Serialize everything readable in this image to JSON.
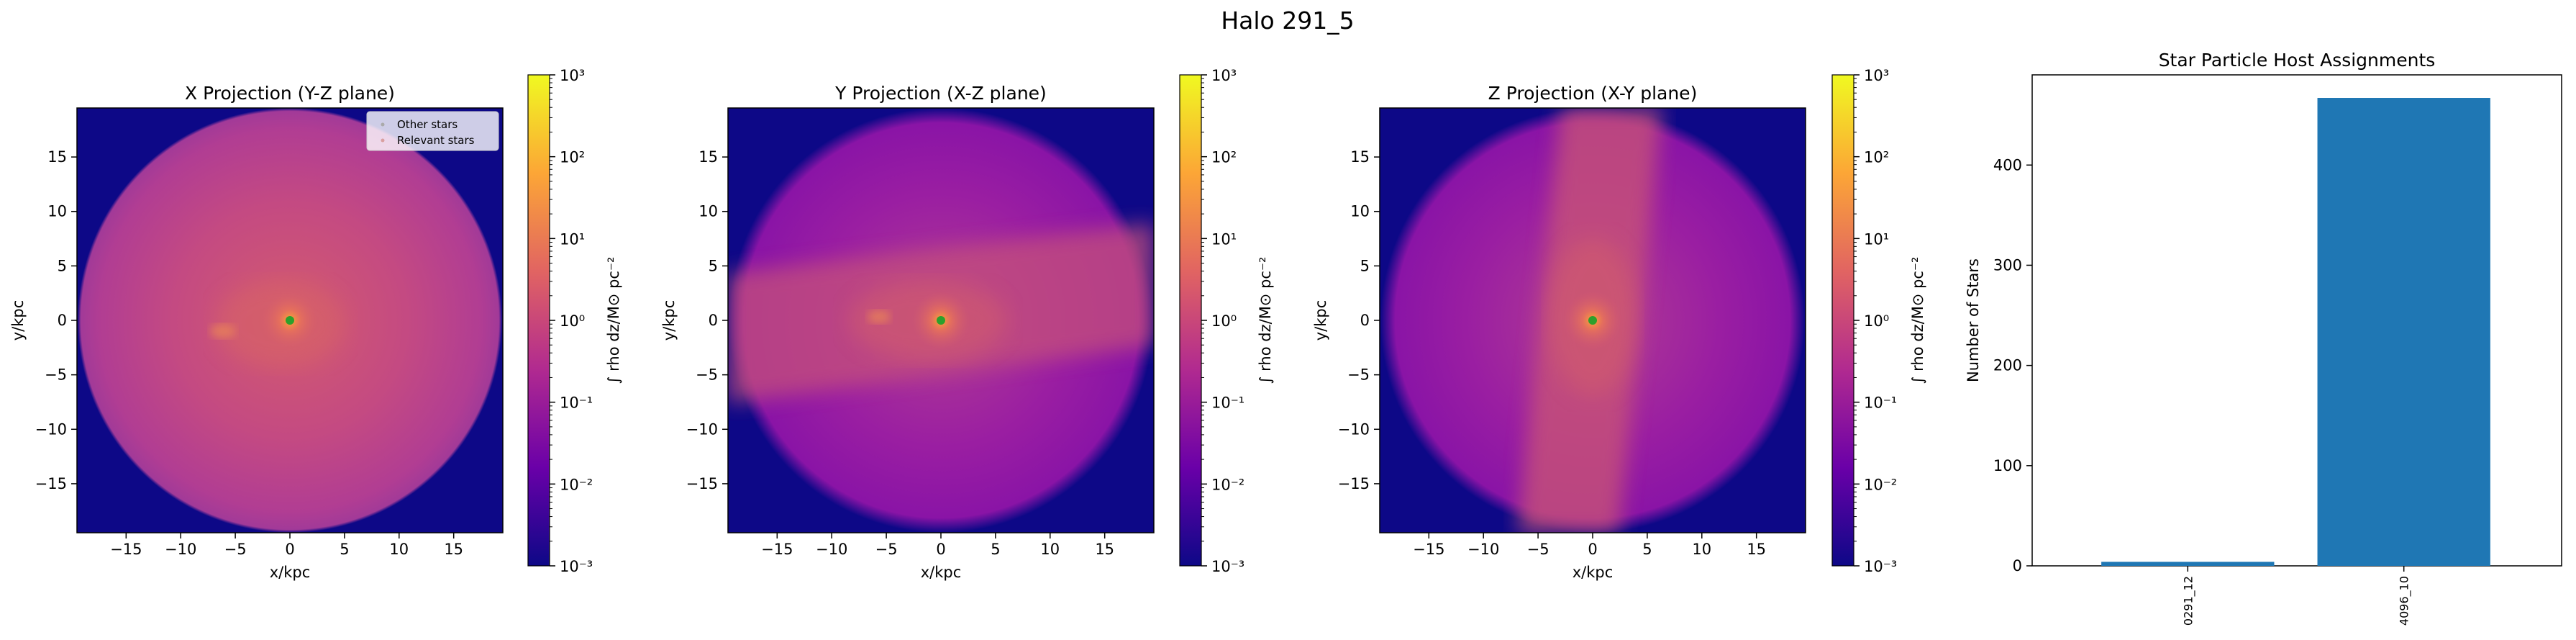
{
  "figure": {
    "title": "Halo 291_5"
  },
  "colors": {
    "bar": "#1f77b4",
    "halo_center": "#2ca02c",
    "background_outside": "#0d0887",
    "colormap": [
      "#0d0887",
      "#6a00a8",
      "#b12a90",
      "#e16462",
      "#fca636",
      "#f0f921"
    ]
  },
  "projections": [
    {
      "title": "X Projection (Y-Z plane)",
      "xlabel": "x/kpc",
      "ylabel": "y/kpc",
      "xticks": [
        "−15",
        "−10",
        "−5",
        "0",
        "5",
        "10",
        "15"
      ],
      "yticks": [
        "15",
        "10",
        "5",
        "0",
        "−5",
        "−10",
        "−15"
      ],
      "legend": [
        "Other stars",
        "Relevant stars"
      ],
      "colorbar_label": "∫ rho dz/M⊙ pc⁻²",
      "colorbar_ticks": [
        "10³",
        "10²",
        "10¹",
        "10⁰",
        "10⁻¹",
        "10⁻²",
        "10⁻³"
      ]
    },
    {
      "title": "Y Projection (X-Z plane)",
      "xlabel": "x/kpc",
      "ylabel": "y/kpc",
      "xticks": [
        "−15",
        "−10",
        "−5",
        "0",
        "5",
        "10",
        "15"
      ],
      "yticks": [
        "15",
        "10",
        "5",
        "0",
        "−5",
        "−10",
        "−15"
      ],
      "colorbar_label": "∫ rho dz/M⊙ pc⁻²",
      "colorbar_ticks": [
        "10³",
        "10²",
        "10¹",
        "10⁰",
        "10⁻¹",
        "10⁻²",
        "10⁻³"
      ]
    },
    {
      "title": "Z Projection (X-Y plane)",
      "xlabel": "x/kpc",
      "ylabel": "y/kpc",
      "xticks": [
        "−15",
        "−10",
        "−5",
        "0",
        "5",
        "10",
        "15"
      ],
      "yticks": [
        "15",
        "10",
        "5",
        "0",
        "−5",
        "−10",
        "−15"
      ],
      "colorbar_label": "∫ rho dz/M⊙ pc⁻²",
      "colorbar_ticks": [
        "10³",
        "10²",
        "10¹",
        "10⁰",
        "10⁻¹",
        "10⁻²",
        "10⁻³"
      ]
    }
  ],
  "chart_data": [
    {
      "type": "heatmap",
      "title": "X Projection (Y-Z plane)",
      "xlabel": "x/kpc",
      "ylabel": "y/kpc",
      "xlim": [
        -19.5,
        19.5
      ],
      "ylim": [
        -19.5,
        19.5
      ],
      "colorbar": {
        "label": "∫ rho dz/M⊙ pc⁻²",
        "scale": "log",
        "range": [
          0.001,
          1000
        ]
      },
      "legend": [
        "Other stars",
        "Relevant stars"
      ],
      "legend_position": "top-right",
      "halo_center": {
        "x": 0,
        "y": 0
      }
    },
    {
      "type": "heatmap",
      "title": "Y Projection (X-Z plane)",
      "xlabel": "x/kpc",
      "ylabel": "y/kpc",
      "xlim": [
        -19.5,
        19.5
      ],
      "ylim": [
        -19.5,
        19.5
      ],
      "colorbar": {
        "label": "∫ rho dz/M⊙ pc⁻²",
        "scale": "log",
        "range": [
          0.001,
          1000
        ]
      },
      "halo_center": {
        "x": 0,
        "y": 0
      }
    },
    {
      "type": "heatmap",
      "title": "Z Projection (X-Y plane)",
      "xlabel": "x/kpc",
      "ylabel": "y/kpc",
      "xlim": [
        -19.5,
        19.5
      ],
      "ylim": [
        -19.5,
        19.5
      ],
      "colorbar": {
        "label": "∫ rho dz/M⊙ pc⁻²",
        "scale": "log",
        "range": [
          0.001,
          1000
        ]
      },
      "halo_center": {
        "x": 0,
        "y": 0
      }
    },
    {
      "type": "bar",
      "title": "Star Particle Host Assignments",
      "xlabel": "",
      "ylabel": "Number of Stars",
      "categories": [
        "0291_12",
        "4096_10"
      ],
      "values": [
        4,
        467
      ],
      "ylim": [
        0,
        490
      ],
      "yticks": [
        0,
        100,
        200,
        300,
        400
      ],
      "grid": false
    }
  ]
}
